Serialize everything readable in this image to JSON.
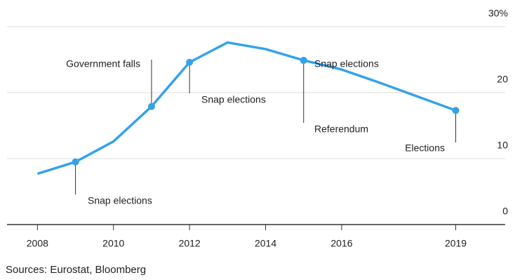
{
  "chart_data": {
    "type": "line",
    "x": [
      2008,
      2009,
      2010,
      2011,
      2012,
      2013,
      2014,
      2015,
      2016,
      2017,
      2018,
      2019
    ],
    "series": [
      {
        "color": "#35a2e8",
        "values": [
          7.7,
          9.5,
          12.6,
          17.9,
          24.6,
          27.6,
          26.6,
          24.9,
          23.5,
          21.5,
          19.4,
          17.3
        ]
      }
    ],
    "xlim": [
      2007.2,
      2020.3
    ],
    "xticks": [
      2008,
      2010,
      2012,
      2014,
      2016,
      2019
    ],
    "ylim": [
      0,
      30
    ],
    "yticks": [
      0,
      10,
      20,
      {
        "value": 30,
        "label": "30%"
      }
    ],
    "grid": true,
    "annotations": [
      {
        "x": 2009,
        "label": "Snap elections"
      },
      {
        "x": 2011,
        "label": "Government falls"
      },
      {
        "x": 2012,
        "label": "Snap elections"
      },
      {
        "x": 2015,
        "label": "Snap elections"
      },
      {
        "x": 2015,
        "label": "Referendum"
      },
      {
        "x": 2019,
        "label": "Elections"
      }
    ],
    "source": "Sources: Eurostat, Bloomberg"
  }
}
